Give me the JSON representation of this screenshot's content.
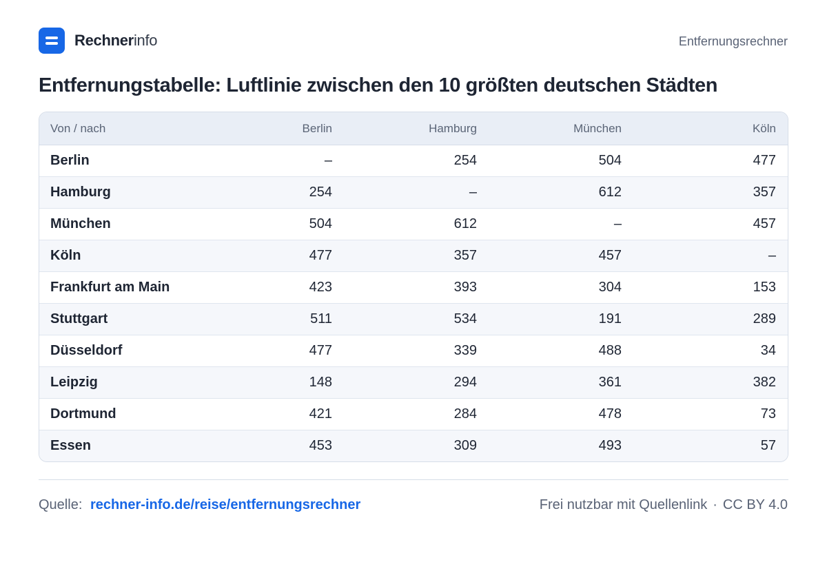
{
  "header": {
    "logo_bold": "Rechner",
    "logo_light": "info",
    "logo_icon": "equals-icon",
    "tool_name": "Entfernungsrechner"
  },
  "title": "Entfernungstabelle: Luftlinie zwischen den 10 größten deutschen Städten",
  "table": {
    "columns": [
      "Von / nach",
      "Berlin",
      "Hamburg",
      "München",
      "Köln"
    ],
    "rows": [
      {
        "city": "Berlin",
        "values": [
          "–",
          "254",
          "504",
          "477"
        ]
      },
      {
        "city": "Hamburg",
        "values": [
          "254",
          "–",
          "612",
          "357"
        ]
      },
      {
        "city": "München",
        "values": [
          "504",
          "612",
          "–",
          "457"
        ]
      },
      {
        "city": "Köln",
        "values": [
          "477",
          "357",
          "457",
          "–"
        ]
      },
      {
        "city": "Frankfurt am Main",
        "values": [
          "423",
          "393",
          "304",
          "153"
        ]
      },
      {
        "city": "Stuttgart",
        "values": [
          "511",
          "534",
          "191",
          "289"
        ]
      },
      {
        "city": "Düsseldorf",
        "values": [
          "477",
          "339",
          "488",
          "34"
        ]
      },
      {
        "city": "Leipzig",
        "values": [
          "148",
          "294",
          "361",
          "382"
        ]
      },
      {
        "city": "Dortmund",
        "values": [
          "421",
          "284",
          "478",
          "73"
        ]
      },
      {
        "city": "Essen",
        "values": [
          "453",
          "309",
          "493",
          "57"
        ]
      }
    ]
  },
  "footer": {
    "source_label": "Quelle:",
    "source_link": "rechner-info.de/reise/entfernungsrechner",
    "license_text": "Frei nutzbar mit Quellenlink",
    "separator": "·",
    "license": "CC BY 4.0"
  },
  "colors": {
    "accent": "#1767e6",
    "header_bg": "#e9eef6",
    "stripe_bg": "#f5f7fb",
    "text": "#1e2533",
    "muted": "#596275"
  }
}
